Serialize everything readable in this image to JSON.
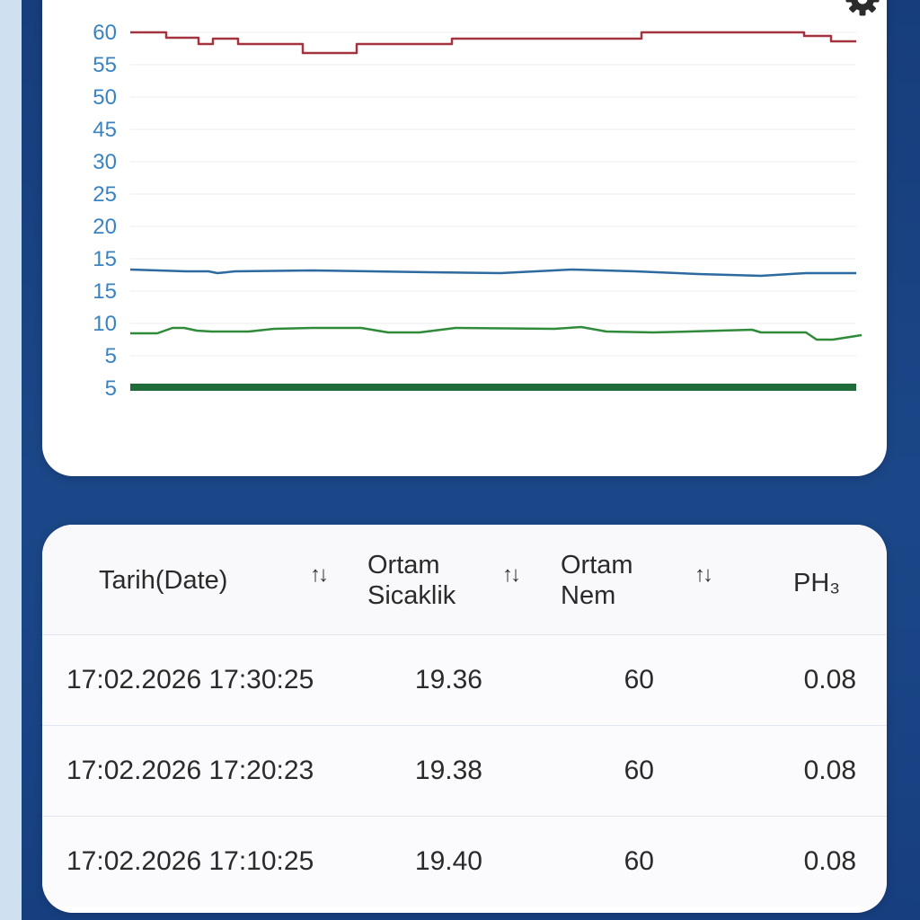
{
  "chart": {
    "y_tick_labels": [
      "60",
      "55",
      "50",
      "45",
      "30",
      "25",
      "20",
      "15",
      "15",
      "10",
      "5",
      "5"
    ],
    "settings_icon": "gear-icon",
    "colors": {
      "red_series": "#a3333f",
      "blue_series": "#2c6aa0",
      "green_series": "#2f8a3a",
      "dark_green_series": "#1f6b3a",
      "axis_label": "#3a83c0"
    }
  },
  "table": {
    "headers": {
      "date": "Tarih(Date)",
      "temp_line1": "Ortam",
      "temp_line2": "Sicaklik",
      "hum_line1": "Ortam",
      "hum_line2": "Nem",
      "ph3": "PH₃"
    },
    "sort_icon": "↑↓",
    "rows": [
      {
        "date": "17:02.2026 17:30:25",
        "temp": "19.36",
        "hum": "60",
        "ph3": "0.08"
      },
      {
        "date": "17:02.2026 17:20:23",
        "temp": "19.38",
        "hum": "60",
        "ph3": "0.08"
      },
      {
        "date": "17:02.2026 17:10:25",
        "temp": "19.40",
        "hum": "60",
        "ph3": "0.08"
      }
    ]
  }
}
